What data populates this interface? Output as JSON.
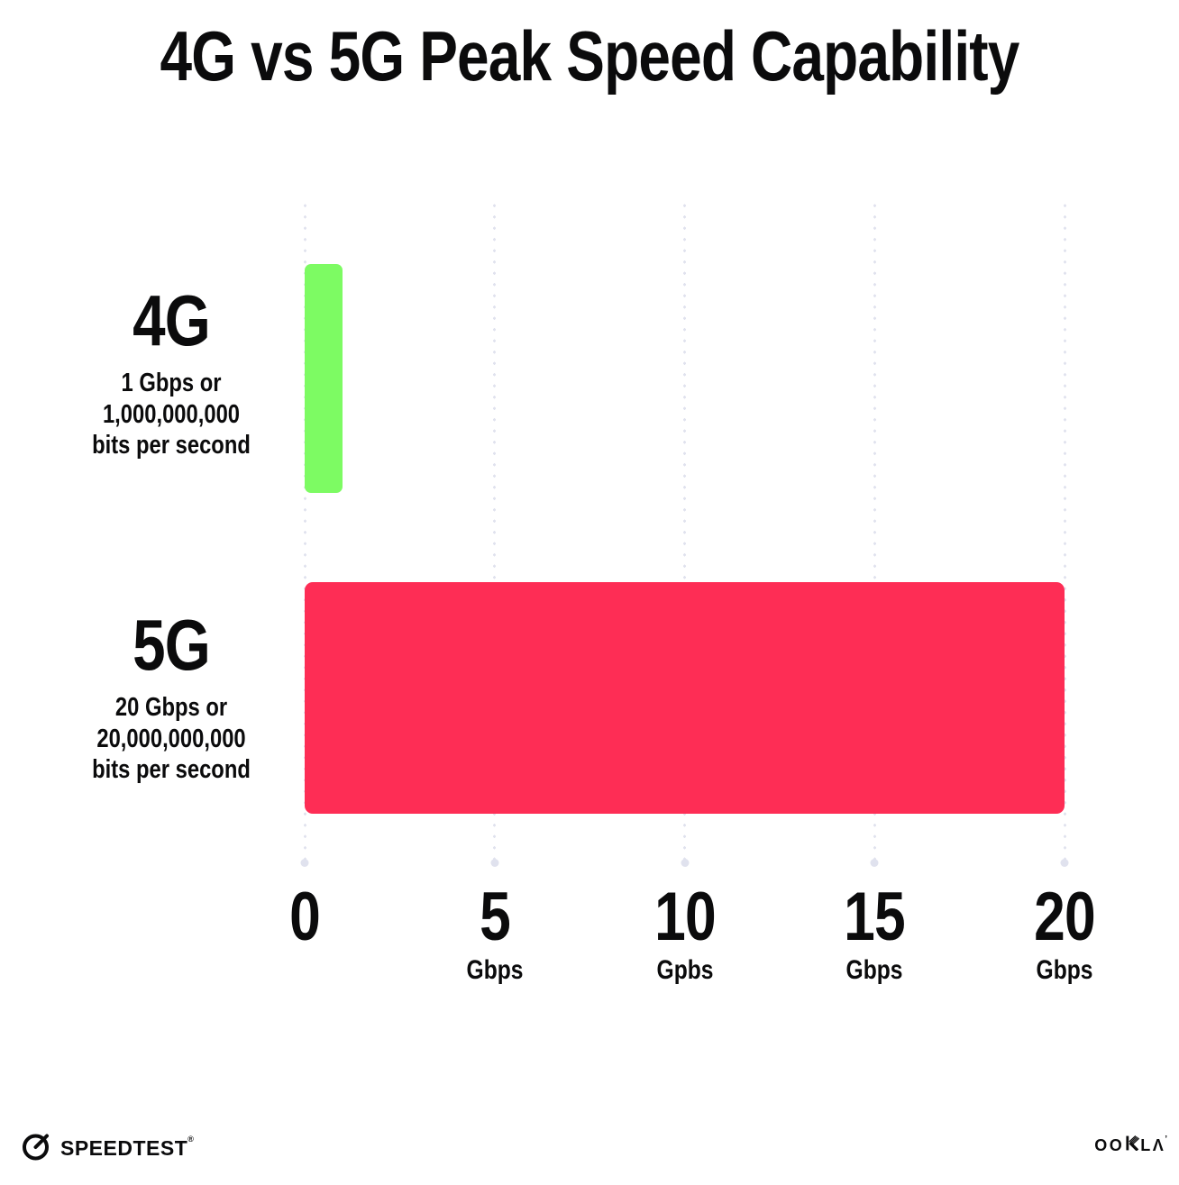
{
  "title": "4G vs 5G Peak Speed Capability",
  "chart_data": {
    "type": "bar",
    "orientation": "horizontal",
    "title": "4G vs 5G Peak Speed Capability",
    "categories": [
      "4G",
      "5G"
    ],
    "values": [
      1,
      20
    ],
    "value_unit": "Gbps",
    "xlim": [
      0,
      20
    ],
    "x_ticks": [
      {
        "label": "0",
        "unit": "",
        "value": 0
      },
      {
        "label": "5",
        "unit": "Gbps",
        "value": 5
      },
      {
        "label": "10",
        "unit": "Gpbs",
        "value": 10
      },
      {
        "label": "15",
        "unit": "Gbps",
        "value": 15
      },
      {
        "label": "20",
        "unit": "Gbps",
        "value": 20
      }
    ],
    "grid": "dotted-vertical",
    "legend": "none",
    "bar_colors": [
      "#7dfb63",
      "#fe2d55"
    ],
    "gridline_color": "#e0e2ee"
  },
  "rows": [
    {
      "label": "4G",
      "value": 1,
      "color": "#7dfb63",
      "desc": [
        "1 Gbps or",
        "1,000,000,000",
        "bits per second"
      ]
    },
    {
      "label": "5G",
      "value": 20,
      "color": "#fe2d55",
      "desc": [
        "20 Gbps or",
        "20,000,000,000",
        "bits per second"
      ]
    }
  ],
  "footer": {
    "speedtest_label": "SPEEDTEST",
    "speedtest_mark": "®",
    "ookla_label": "OOKLA",
    "ookla_prefix": "OO",
    "ookla_suffix": "LΛ",
    "ookla_mark": "’"
  }
}
